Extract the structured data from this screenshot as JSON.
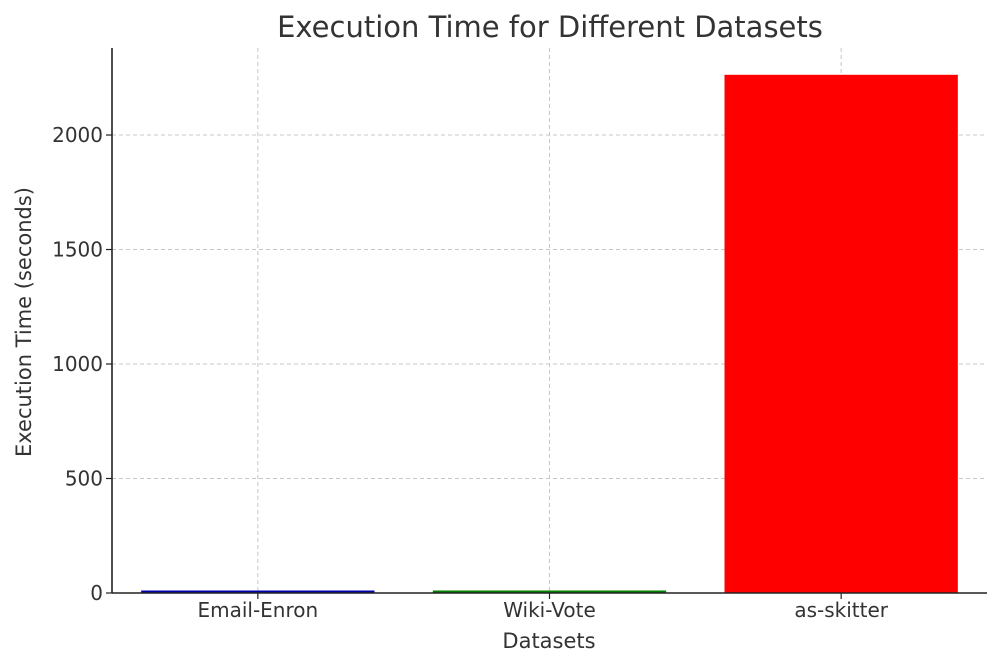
{
  "chart_data": {
    "type": "bar",
    "title": "Execution Time for Different Datasets",
    "xlabel": "Datasets",
    "ylabel": "Execution Time (seconds)",
    "categories": [
      "Email-Enron",
      "Wiki-Vote",
      "as-skitter"
    ],
    "values": [
      9,
      11,
      2263
    ],
    "colors": [
      "#0000aa",
      "#008000",
      "#ff0000"
    ],
    "ylim": [
      0,
      2380
    ],
    "yticks": [
      0,
      500,
      1000,
      1500,
      2000
    ],
    "grid": true
  }
}
